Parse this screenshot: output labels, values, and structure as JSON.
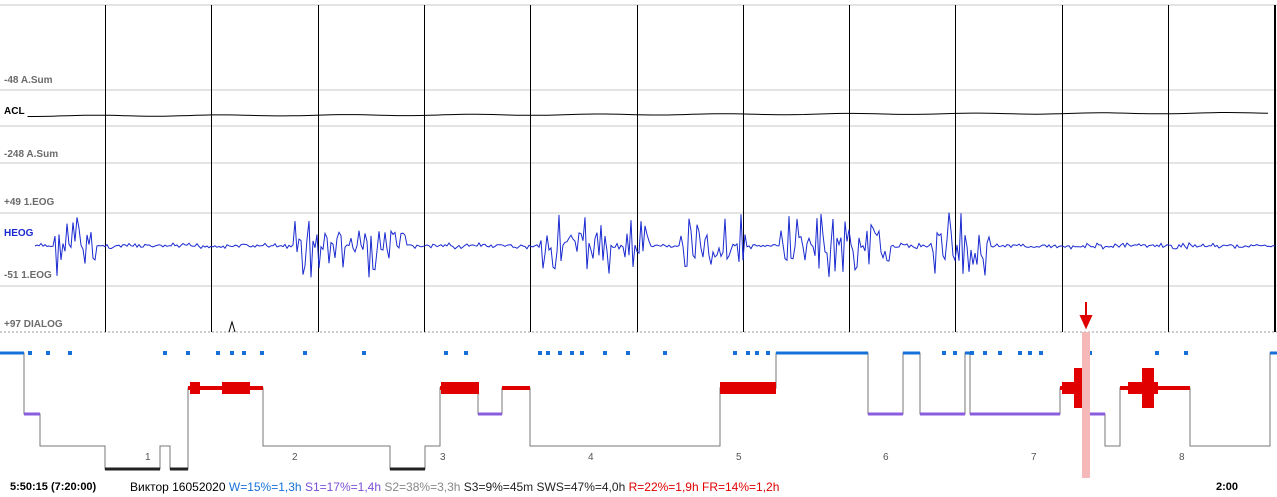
{
  "channels": {
    "asum_top": "-48 A.Sum",
    "acl": "ACL",
    "asum_bottom": "-248 A.Sum",
    "eog_top": "+49 1.EOG",
    "heog": "HEOG",
    "eog_bottom": "-51 1.EOG",
    "dialog": "+97 DIALOG"
  },
  "hypnogram": {
    "hour_labels": [
      "1",
      "2",
      "3",
      "4",
      "5",
      "6",
      "7",
      "8"
    ],
    "marker_icon": "down-arrow-icon",
    "colors": {
      "wake": "#1670d8",
      "s1": "#8a5de0",
      "s2": "#888888",
      "sws": "#222222",
      "rem": "#e00000",
      "marker": "#f4b8b8"
    }
  },
  "status": {
    "time": "5:50:15 (7:20:00)",
    "subject": "Виктор 16052020",
    "w": "W=15%=1,3h",
    "s1": "S1=17%=1,4h",
    "s2": "S2=38%=3,3h",
    "s3": "S3=9%=45m",
    "sws": "SWS=47%=4,0h",
    "r": "R=22%=1,9h",
    "fr": "FR=14%=1,2h",
    "end_time": "2:00"
  }
}
